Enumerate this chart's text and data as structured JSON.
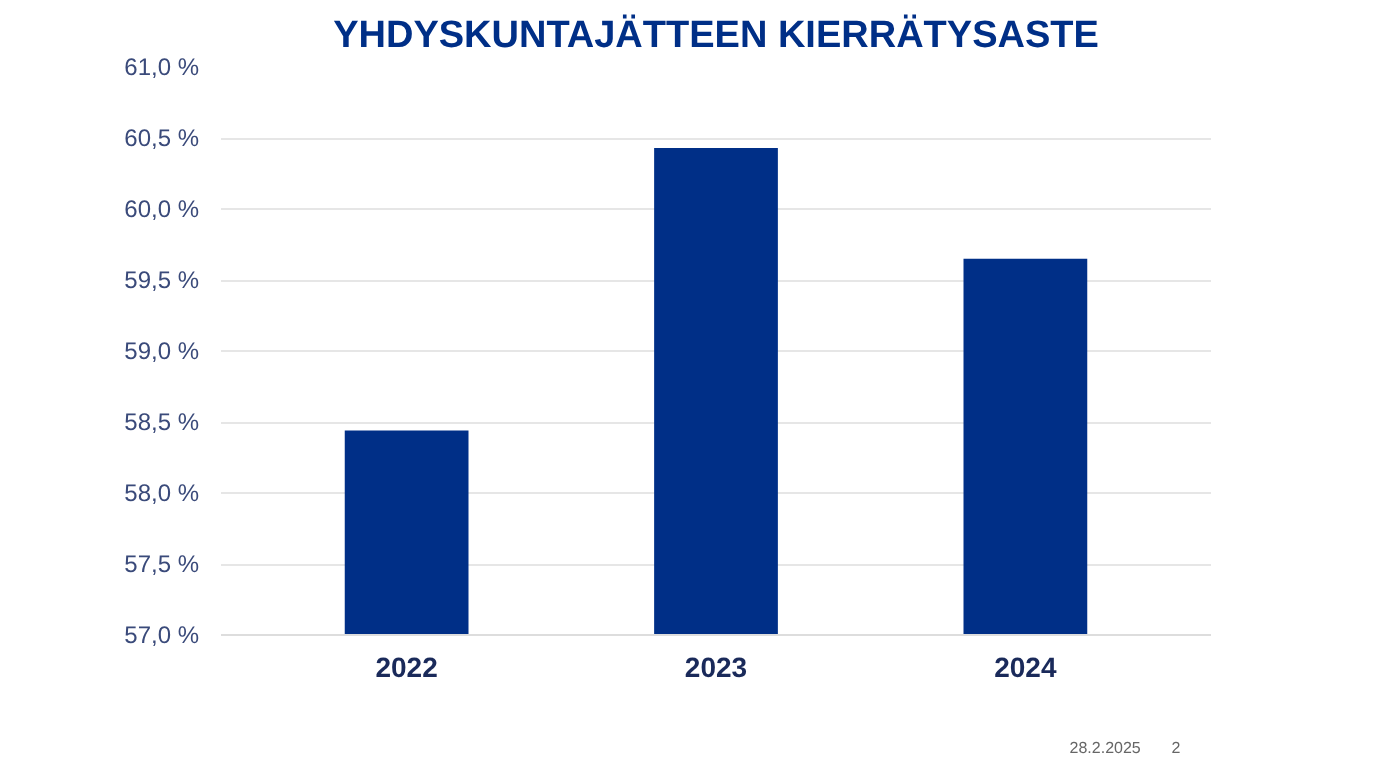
{
  "chart_data": {
    "type": "bar",
    "title": "YHDYSKUNTAJÄTTEEN KIERRÄTYSASTE",
    "categories": [
      "2022",
      "2023",
      "2024"
    ],
    "values": [
      58.44,
      60.43,
      59.65
    ],
    "color": "#002f87",
    "ylim": [
      57.0,
      61.0
    ],
    "yticks": [
      {
        "value": 57.0,
        "label": "57,0 %"
      },
      {
        "value": 57.5,
        "label": "57,5 %"
      },
      {
        "value": 58.0,
        "label": "58,0 %"
      },
      {
        "value": 58.5,
        "label": "58,5 %"
      },
      {
        "value": 59.0,
        "label": "59,0 %"
      },
      {
        "value": 59.5,
        "label": "59,5 %"
      },
      {
        "value": 60.0,
        "label": "60,0 %"
      },
      {
        "value": 60.5,
        "label": "60,5 %"
      },
      {
        "value": 61.0,
        "label": "61,0 %"
      }
    ],
    "grid": "y",
    "annotations": [
      "28.2.2025",
      "2"
    ]
  }
}
